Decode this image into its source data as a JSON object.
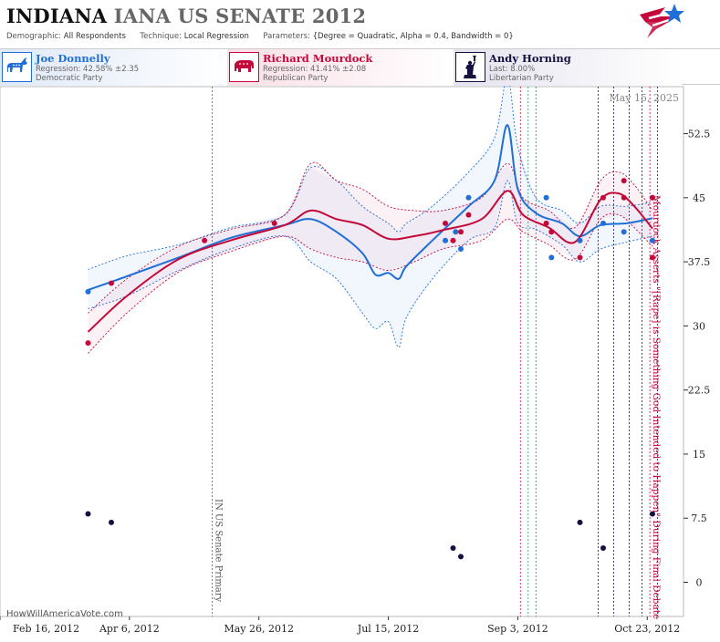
{
  "header": {
    "state": "INDIANA",
    "race": "IANA US SENATE 2012",
    "demographic_label": "Demographic:",
    "demographic_value": "All Respondents",
    "technique_label": "Technique:",
    "technique_value": "Local Regression",
    "parameters_label": "Parameters:",
    "parameters_value": "{Degree = Quadratic, Alpha = 0.4, Bandwidth = 0}"
  },
  "candidates": [
    {
      "name": "Joe Donnelly",
      "stat": "Regression: 42.58% ±2.35",
      "party": "Democratic Party",
      "color": "#1f6fd6",
      "icon": "donkey-icon",
      "bg": "#dfe9f7"
    },
    {
      "name": "Richard Mourdock",
      "stat": "Regression: 41.41% ±2.08",
      "party": "Republican Party",
      "color": "#c4093a",
      "icon": "elephant-icon",
      "bg": "#f8dfe6"
    },
    {
      "name": "Andy Horning",
      "stat": "Last: 8.00%",
      "party": "Libertarian Party",
      "color": "#14103f",
      "icon": "statue-of-liberty-icon",
      "bg": "#e4e3ee"
    }
  ],
  "watermark": "HowWillAmericaVote.com",
  "chart_data": {
    "type": "line",
    "date_label": "May 15, 2025",
    "x_ticks": [
      "Feb 16, 2012",
      "Apr 6, 2012",
      "May 26, 2012",
      "Jul 15, 2012",
      "Sep 3, 2012",
      "Oct 23, 2012"
    ],
    "x_tick_dates": [
      "2012-02-16",
      "2012-04-06",
      "2012-05-26",
      "2012-07-15",
      "2012-09-03",
      "2012-10-23"
    ],
    "xlim": [
      "2012-02-16",
      "2012-11-06"
    ],
    "y_ticks": [
      0,
      7.5,
      15,
      22.5,
      30,
      37.5,
      45,
      52.5
    ],
    "ylim": [
      -4,
      58
    ],
    "grid": false,
    "events": [
      {
        "date": "2012-05-08",
        "label": "IN US Senate Primary",
        "color": "#555555"
      },
      {
        "date": "2012-10-24",
        "label": "Mourdock Asserts \"[Rape] is Something God Intended to Happen\" During Final Debate",
        "color": "#c4093a"
      }
    ],
    "extra_markers": [
      {
        "date": "2012-09-04",
        "color": "#c4093a"
      },
      {
        "date": "2012-09-07",
        "color": "#2aa05a"
      },
      {
        "date": "2012-09-10",
        "color": "#1f6fd6"
      },
      {
        "date": "2012-10-04",
        "color": "#14103f"
      },
      {
        "date": "2012-10-10",
        "color": "#14103f"
      },
      {
        "date": "2012-10-16",
        "color": "#14103f"
      },
      {
        "date": "2012-10-21",
        "color": "#14103f"
      },
      {
        "date": "2012-10-27",
        "color": "#14103f"
      }
    ],
    "series": [
      {
        "name": "Joe Donnelly",
        "color": "#1f6fd6",
        "points": [
          [
            "2012-03-21",
            34
          ],
          [
            "2012-08-06",
            40
          ],
          [
            "2012-08-10",
            41
          ],
          [
            "2012-08-12",
            39
          ],
          [
            "2012-08-15",
            45
          ],
          [
            "2012-09-14",
            45
          ],
          [
            "2012-09-16",
            38
          ],
          [
            "2012-09-27",
            40
          ],
          [
            "2012-10-06",
            42
          ],
          [
            "2012-10-14",
            41
          ],
          [
            "2012-10-25",
            45
          ],
          [
            "2012-10-25",
            40
          ]
        ],
        "trend": [
          [
            "2012-03-21",
            34.2
          ],
          [
            "2012-04-05",
            35.8
          ],
          [
            "2012-04-25",
            38
          ],
          [
            "2012-05-15",
            40.3
          ],
          [
            "2012-06-05",
            41.8
          ],
          [
            "2012-06-15",
            42.5
          ],
          [
            "2012-06-25",
            41
          ],
          [
            "2012-07-05",
            38.5
          ],
          [
            "2012-07-10",
            36
          ],
          [
            "2012-07-15",
            36.2
          ],
          [
            "2012-07-19",
            35.5
          ],
          [
            "2012-07-22",
            37
          ],
          [
            "2012-08-01",
            40
          ],
          [
            "2012-08-15",
            44
          ],
          [
            "2012-08-25",
            47
          ],
          [
            "2012-08-30",
            53.5
          ],
          [
            "2012-09-03",
            46
          ],
          [
            "2012-09-10",
            43.2
          ],
          [
            "2012-09-20",
            42
          ],
          [
            "2012-09-27",
            40.5
          ],
          [
            "2012-10-05",
            41.8
          ],
          [
            "2012-10-15",
            42
          ],
          [
            "2012-10-25",
            42.6
          ]
        ],
        "upper": [
          [
            "2012-03-21",
            36.6
          ],
          [
            "2012-04-05",
            38.2
          ],
          [
            "2012-04-25",
            39.5
          ],
          [
            "2012-05-15",
            41.5
          ],
          [
            "2012-06-05",
            43
          ],
          [
            "2012-06-15",
            48.5
          ],
          [
            "2012-06-25",
            47
          ],
          [
            "2012-07-05",
            44
          ],
          [
            "2012-07-15",
            42
          ],
          [
            "2012-07-19",
            41
          ],
          [
            "2012-07-22",
            42
          ],
          [
            "2012-08-01",
            44
          ],
          [
            "2012-08-15",
            48
          ],
          [
            "2012-08-25",
            52
          ],
          [
            "2012-08-30",
            59
          ],
          [
            "2012-09-03",
            51
          ],
          [
            "2012-09-10",
            45
          ],
          [
            "2012-09-20",
            43.5
          ],
          [
            "2012-09-27",
            42
          ],
          [
            "2012-10-05",
            44
          ],
          [
            "2012-10-15",
            44
          ],
          [
            "2012-10-25",
            44.5
          ]
        ],
        "lower": [
          [
            "2012-03-21",
            32
          ],
          [
            "2012-04-05",
            33.5
          ],
          [
            "2012-04-25",
            36.5
          ],
          [
            "2012-05-15",
            39
          ],
          [
            "2012-06-05",
            40.5
          ],
          [
            "2012-06-15",
            37.5
          ],
          [
            "2012-06-25",
            35.5
          ],
          [
            "2012-07-05",
            31.5
          ],
          [
            "2012-07-10",
            29.7
          ],
          [
            "2012-07-15",
            30.5
          ],
          [
            "2012-07-19",
            27.5
          ],
          [
            "2012-07-22",
            31
          ],
          [
            "2012-08-01",
            35.5
          ],
          [
            "2012-08-15",
            40
          ],
          [
            "2012-08-25",
            41.5
          ],
          [
            "2012-08-30",
            47
          ],
          [
            "2012-09-03",
            42
          ],
          [
            "2012-09-10",
            41.3
          ],
          [
            "2012-09-20",
            39.5
          ],
          [
            "2012-09-27",
            37.5
          ],
          [
            "2012-10-05",
            39
          ],
          [
            "2012-10-15",
            39.8
          ],
          [
            "2012-10-25",
            40.5
          ]
        ]
      },
      {
        "name": "Richard Mourdock",
        "color": "#c4093a",
        "points": [
          [
            "2012-03-21",
            28
          ],
          [
            "2012-03-30",
            35
          ],
          [
            "2012-05-05",
            40
          ],
          [
            "2012-06-01",
            42
          ],
          [
            "2012-08-06",
            42
          ],
          [
            "2012-08-09",
            40
          ],
          [
            "2012-08-12",
            41
          ],
          [
            "2012-08-15",
            43
          ],
          [
            "2012-09-14",
            42
          ],
          [
            "2012-09-16",
            41
          ],
          [
            "2012-09-27",
            38
          ],
          [
            "2012-10-06",
            45
          ],
          [
            "2012-10-14",
            45
          ],
          [
            "2012-10-14",
            47
          ],
          [
            "2012-10-25",
            45
          ],
          [
            "2012-10-25",
            38
          ]
        ],
        "trend": [
          [
            "2012-03-21",
            29.3
          ],
          [
            "2012-04-05",
            33.5
          ],
          [
            "2012-04-25",
            37.8
          ],
          [
            "2012-05-15",
            40
          ],
          [
            "2012-06-05",
            41.8
          ],
          [
            "2012-06-15",
            43.5
          ],
          [
            "2012-06-25",
            42.5
          ],
          [
            "2012-07-05",
            41.8
          ],
          [
            "2012-07-15",
            40.2
          ],
          [
            "2012-07-25",
            40.5
          ],
          [
            "2012-08-05",
            41.2
          ],
          [
            "2012-08-20",
            42.5
          ],
          [
            "2012-08-30",
            45.8
          ],
          [
            "2012-09-05",
            43
          ],
          [
            "2012-09-15",
            41.5
          ],
          [
            "2012-09-25",
            39.8
          ],
          [
            "2012-10-05",
            44.8
          ],
          [
            "2012-10-12",
            45.5
          ],
          [
            "2012-10-18",
            44
          ],
          [
            "2012-10-25",
            41.4
          ]
        ],
        "upper": [
          [
            "2012-03-21",
            31.5
          ],
          [
            "2012-04-05",
            35.5
          ],
          [
            "2012-04-25",
            39.3
          ],
          [
            "2012-05-15",
            41.3
          ],
          [
            "2012-06-05",
            43
          ],
          [
            "2012-06-15",
            49
          ],
          [
            "2012-06-25",
            47
          ],
          [
            "2012-07-05",
            46
          ],
          [
            "2012-07-15",
            44
          ],
          [
            "2012-07-25",
            43.5
          ],
          [
            "2012-08-05",
            43.5
          ],
          [
            "2012-08-20",
            45
          ],
          [
            "2012-08-30",
            49
          ],
          [
            "2012-09-05",
            45
          ],
          [
            "2012-09-15",
            43.5
          ],
          [
            "2012-09-25",
            41.5
          ],
          [
            "2012-10-05",
            47
          ],
          [
            "2012-10-12",
            48
          ],
          [
            "2012-10-18",
            46.5
          ],
          [
            "2012-10-25",
            43.5
          ]
        ],
        "lower": [
          [
            "2012-03-21",
            26.8
          ],
          [
            "2012-04-05",
            31.5
          ],
          [
            "2012-04-25",
            36.3
          ],
          [
            "2012-05-15",
            38.7
          ],
          [
            "2012-06-05",
            40.5
          ],
          [
            "2012-06-15",
            39
          ],
          [
            "2012-06-25",
            38
          ],
          [
            "2012-07-05",
            37.5
          ],
          [
            "2012-07-15",
            36.5
          ],
          [
            "2012-07-25",
            37.5
          ],
          [
            "2012-08-05",
            39
          ],
          [
            "2012-08-20",
            40
          ],
          [
            "2012-08-30",
            42.5
          ],
          [
            "2012-09-05",
            41
          ],
          [
            "2012-09-15",
            39.5
          ],
          [
            "2012-09-25",
            37.8
          ],
          [
            "2012-10-05",
            42.5
          ],
          [
            "2012-10-12",
            43
          ],
          [
            "2012-10-18",
            41.5
          ],
          [
            "2012-10-25",
            39.3
          ]
        ]
      },
      {
        "name": "Andy Horning",
        "color": "#14103f",
        "points": [
          [
            "2012-03-21",
            8
          ],
          [
            "2012-03-30",
            7
          ],
          [
            "2012-08-09",
            4
          ],
          [
            "2012-08-12",
            3
          ],
          [
            "2012-09-27",
            7
          ],
          [
            "2012-10-06",
            4
          ],
          [
            "2012-10-25",
            8
          ]
        ]
      }
    ]
  }
}
